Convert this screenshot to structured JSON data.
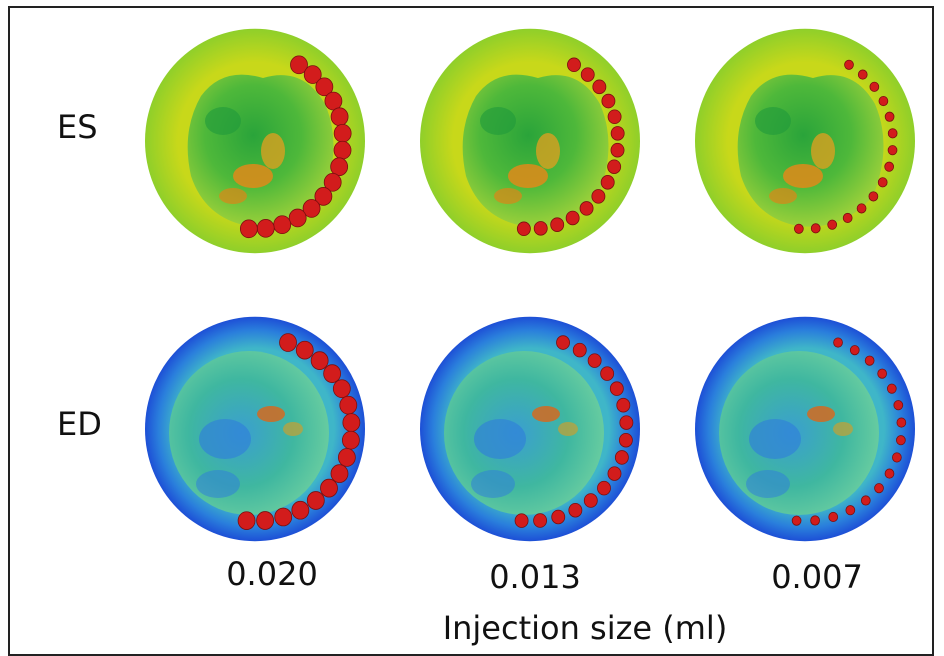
{
  "rows": [
    {
      "label": "ES"
    },
    {
      "label": "ED"
    }
  ],
  "columns": [
    {
      "label": "0.020",
      "bead_scale": 1.0
    },
    {
      "label": "0.013",
      "bead_scale": 0.72
    },
    {
      "label": "0.007",
      "bead_scale": 0.42
    }
  ],
  "xlabel": "Injection size (ml)",
  "colors": {
    "es_outer": "#8fcf2a",
    "es_rim": "#c8d81a",
    "es_inner": "#4eb83a",
    "es_hot": "#e08a1a",
    "ed_outer": "#1d4fd6",
    "ed_rim": "#3fb6c8",
    "ed_inner": "#3fb7a0",
    "ed_blue": "#2f7fd8",
    "bead": "#d21c1c",
    "bead_dark": "#7a0f0f"
  }
}
